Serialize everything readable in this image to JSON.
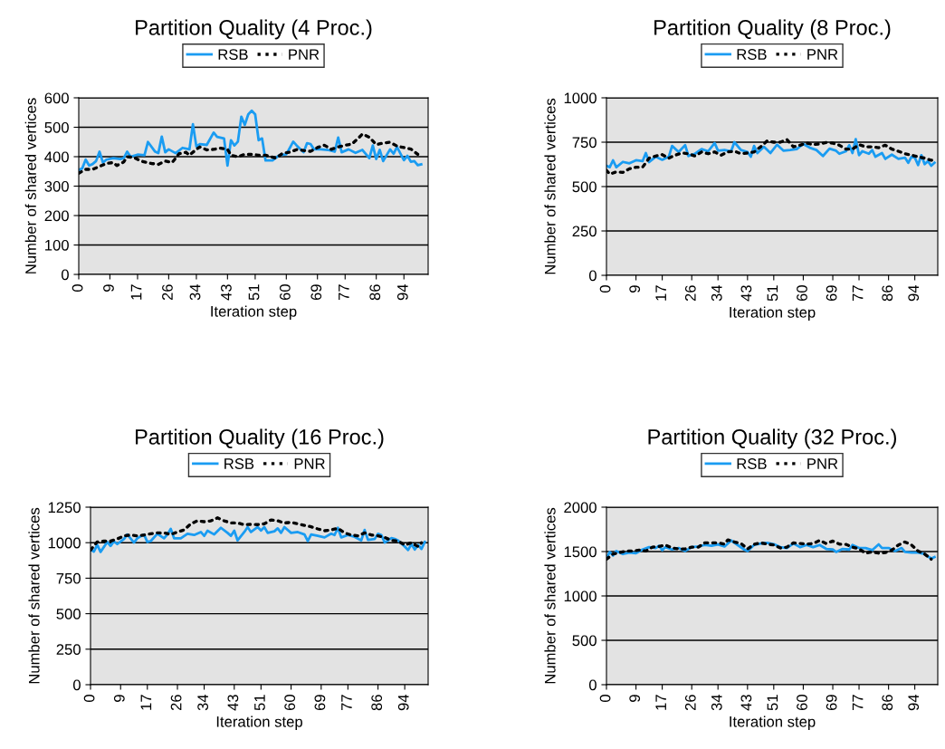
{
  "chart_data": [
    {
      "type": "line",
      "title": "Partition Quality (4 Proc.)",
      "xlabel": "Iteration step",
      "ylabel": "Number of shared vertices",
      "xlim": [
        0,
        101
      ],
      "xticks": [
        0,
        9,
        17,
        26,
        34,
        43,
        51,
        60,
        69,
        77,
        86,
        94
      ],
      "ylim": [
        0,
        600
      ],
      "yticks": [
        0,
        100,
        200,
        300,
        400,
        500,
        600
      ],
      "grid": "y",
      "legend": "top",
      "marker": "none",
      "series": [
        {
          "name": "RSB",
          "color": "#1a9cf2",
          "line_style": "solid",
          "x": [
            0,
            1,
            2,
            3,
            4,
            5,
            6,
            7,
            8,
            10,
            12,
            13,
            14,
            15,
            17,
            19,
            20,
            22,
            23,
            24,
            25,
            26,
            28,
            30,
            32,
            33,
            34,
            35,
            37,
            39,
            40,
            42,
            43,
            44,
            45,
            46,
            47,
            48,
            49,
            50,
            51,
            52,
            53,
            54,
            56,
            58,
            60,
            62,
            63,
            65,
            66,
            67,
            68,
            70,
            72,
            74,
            75,
            76,
            78,
            80,
            82,
            84,
            85,
            86,
            87,
            88,
            90,
            91,
            92,
            94,
            95,
            96,
            97,
            98,
            99
          ],
          "values": [
            355,
            360,
            390,
            370,
            375,
            385,
            417,
            380,
            390,
            395,
            392,
            395,
            417,
            400,
            407,
            405,
            450,
            418,
            412,
            468,
            415,
            425,
            412,
            430,
            425,
            510,
            435,
            443,
            440,
            482,
            467,
            462,
            370,
            456,
            438,
            451,
            536,
            508,
            544,
            556,
            544,
            456,
            462,
            387,
            387,
            405,
            408,
            451,
            438,
            415,
            446,
            443,
            425,
            425,
            423,
            417,
            465,
            415,
            425,
            413,
            423,
            395,
            438,
            392,
            423,
            385,
            425,
            410,
            433,
            388,
            403,
            383,
            385,
            371,
            374
          ]
        },
        {
          "name": "PNR",
          "color": "#000000",
          "line_style": "dotted",
          "x": [
            0,
            2,
            4,
            6,
            8,
            10,
            11,
            13,
            14,
            16,
            18,
            21,
            23,
            25,
            27,
            29,
            31,
            32,
            34,
            35,
            37,
            39,
            41,
            43,
            44,
            46,
            48,
            50,
            52,
            54,
            57,
            59,
            61,
            63,
            65,
            67,
            69,
            71,
            73,
            75,
            77,
            79,
            81,
            82,
            84,
            86,
            88,
            90,
            92,
            94,
            96,
            98
          ],
          "values": [
            344,
            357,
            357,
            367,
            377,
            380,
            370,
            382,
            400,
            397,
            385,
            377,
            374,
            385,
            380,
            410,
            415,
            405,
            425,
            433,
            423,
            425,
            429,
            425,
            405,
            400,
            408,
            408,
            405,
            405,
            395,
            412,
            415,
            424,
            421,
            418,
            431,
            439,
            425,
            433,
            439,
            443,
            465,
            477,
            466,
            441,
            446,
            449,
            436,
            431,
            426,
            408
          ]
        }
      ]
    },
    {
      "type": "line",
      "title": "Partition Quality (8 Proc.)",
      "xlabel": "Iteration step",
      "ylabel": "Number of shared vertices",
      "xlim": [
        0,
        101
      ],
      "xticks": [
        0,
        9,
        17,
        26,
        34,
        43,
        51,
        60,
        69,
        77,
        86,
        94
      ],
      "ylim": [
        0,
        1000
      ],
      "yticks": [
        0,
        250,
        500,
        750,
        1000
      ],
      "grid": "y",
      "legend": "top",
      "marker": "none",
      "series": [
        {
          "name": "RSB",
          "color": "#1a9cf2",
          "line_style": "solid",
          "x": [
            0,
            1,
            2,
            3,
            5,
            7,
            9,
            11,
            12,
            13,
            15,
            17,
            19,
            20,
            22,
            24,
            25,
            27,
            29,
            31,
            33,
            34,
            36,
            38,
            39,
            41,
            43,
            44,
            45,
            46,
            48,
            50,
            52,
            54,
            56,
            58,
            60,
            62,
            64,
            66,
            68,
            70,
            71,
            73,
            74,
            75,
            76,
            77,
            78,
            80,
            81,
            82,
            84,
            85,
            87,
            89,
            91,
            92,
            93,
            94,
            95,
            96,
            97,
            98,
            99,
            100
          ],
          "values": [
            617,
            609,
            648,
            609,
            639,
            631,
            648,
            643,
            689,
            638,
            668,
            651,
            668,
            729,
            695,
            733,
            672,
            685,
            711,
            699,
            745,
            702,
            706,
            699,
            750,
            706,
            695,
            668,
            729,
            689,
            724,
            689,
            736,
            702,
            706,
            711,
            740,
            719,
            706,
            672,
            714,
            702,
            685,
            699,
            733,
            689,
            767,
            677,
            699,
            685,
            706,
            668,
            689,
            656,
            680,
            656,
            663,
            634,
            668,
            663,
            621,
            677,
            626,
            643,
            617,
            634
          ]
        },
        {
          "name": "PNR",
          "color": "#000000",
          "line_style": "dotted",
          "x": [
            0,
            1,
            3,
            5,
            7,
            9,
            11,
            13,
            15,
            17,
            19,
            21,
            23,
            25,
            27,
            29,
            31,
            33,
            35,
            37,
            39,
            41,
            43,
            45,
            47,
            49,
            51,
            53,
            55,
            57,
            59,
            61,
            63,
            65,
            67,
            69,
            71,
            73,
            75,
            77,
            79,
            81,
            83,
            85,
            87,
            89,
            91,
            93,
            95,
            97,
            99,
            100
          ],
          "values": [
            592,
            570,
            583,
            580,
            600,
            609,
            609,
            660,
            672,
            680,
            660,
            677,
            689,
            685,
            672,
            695,
            685,
            695,
            677,
            695,
            699,
            685,
            689,
            695,
            724,
            757,
            750,
            750,
            765,
            724,
            733,
            745,
            736,
            741,
            748,
            745,
            733,
            711,
            711,
            736,
            724,
            724,
            719,
            733,
            711,
            699,
            685,
            677,
            668,
            660,
            648,
            651
          ]
        }
      ]
    },
    {
      "type": "line",
      "title": "Partition Quality (16 Proc.)",
      "xlabel": "Iteration step",
      "ylabel": "Number of shared vertices",
      "xlim": [
        0,
        101
      ],
      "xticks": [
        0,
        9,
        17,
        26,
        34,
        43,
        51,
        60,
        69,
        77,
        86,
        94
      ],
      "ylim": [
        0,
        1250
      ],
      "yticks": [
        0,
        250,
        500,
        750,
        1000,
        1250
      ],
      "grid": "y",
      "legend": "top",
      "marker": "none",
      "series": [
        {
          "name": "RSB",
          "color": "#1a9cf2",
          "line_style": "solid",
          "x": [
            0,
            1,
            2,
            3,
            5,
            6,
            7,
            8,
            10,
            11,
            13,
            14,
            16,
            17,
            18,
            20,
            22,
            23,
            24,
            25,
            27,
            29,
            31,
            33,
            34,
            35,
            37,
            39,
            41,
            42,
            43,
            44,
            46,
            47,
            48,
            50,
            51,
            52,
            53,
            55,
            56,
            57,
            58,
            60,
            62,
            64,
            65,
            66,
            68,
            70,
            72,
            73,
            74,
            75,
            77,
            79,
            81,
            82,
            83,
            85,
            86,
            87,
            88,
            90,
            91,
            92,
            94,
            95,
            96,
            97,
            98,
            99,
            100
          ],
          "values": [
            952,
            937,
            984,
            935,
            1005,
            977,
            1009,
            990,
            1026,
            1058,
            1001,
            1031,
            1058,
            1005,
            1011,
            1063,
            1031,
            1058,
            1097,
            1031,
            1031,
            1063,
            1054,
            1075,
            1048,
            1084,
            1058,
            1105,
            1069,
            1048,
            1084,
            1016,
            1075,
            1110,
            1075,
            1110,
            1086,
            1110,
            1069,
            1080,
            1101,
            1069,
            1110,
            1069,
            1075,
            1058,
            1011,
            1058,
            1048,
            1037,
            1063,
            1054,
            1105,
            1037,
            1054,
            1041,
            1016,
            1090,
            1020,
            1026,
            1063,
            1054,
            1001,
            1033,
            1026,
            1016,
            973,
            948,
            990,
            952,
            984,
            956,
            1005
          ]
        },
        {
          "name": "PNR",
          "color": "#000000",
          "line_style": "dotted",
          "x": [
            0,
            2,
            4,
            6,
            8,
            10,
            12,
            14,
            16,
            18,
            20,
            22,
            24,
            26,
            28,
            30,
            32,
            34,
            36,
            38,
            40,
            42,
            44,
            46,
            48,
            50,
            52,
            54,
            56,
            58,
            60,
            62,
            64,
            66,
            68,
            70,
            72,
            74,
            76,
            78,
            80,
            82,
            84,
            86,
            88,
            90,
            92,
            94,
            96,
            98,
            99
          ],
          "values": [
            948,
            1005,
            1011,
            1011,
            1026,
            1048,
            1054,
            1048,
            1054,
            1063,
            1069,
            1069,
            1058,
            1075,
            1090,
            1133,
            1154,
            1148,
            1154,
            1175,
            1154,
            1139,
            1139,
            1127,
            1129,
            1127,
            1133,
            1160,
            1154,
            1139,
            1143,
            1133,
            1122,
            1112,
            1097,
            1084,
            1090,
            1101,
            1069,
            1054,
            1048,
            1069,
            1054,
            1048,
            1037,
            1016,
            1011,
            984,
            999,
            973,
            999
          ]
        }
      ]
    },
    {
      "type": "line",
      "title": "Partition Quality (32 Proc.)",
      "xlabel": "Iteration step",
      "ylabel": "Number of shared vertices",
      "xlim": [
        0,
        101
      ],
      "xticks": [
        0,
        9,
        17,
        26,
        34,
        43,
        51,
        60,
        69,
        77,
        86,
        94
      ],
      "ylim": [
        0,
        2000
      ],
      "yticks": [
        0,
        500,
        1000,
        1500,
        2000
      ],
      "grid": "y",
      "legend": "top",
      "marker": "none",
      "series": [
        {
          "name": "RSB",
          "color": "#1a9cf2",
          "line_style": "solid",
          "x": [
            0,
            1,
            2,
            3,
            5,
            7,
            9,
            11,
            13,
            15,
            16,
            17,
            18,
            20,
            22,
            24,
            26,
            28,
            30,
            32,
            34,
            36,
            38,
            40,
            42,
            43,
            45,
            47,
            49,
            51,
            53,
            55,
            57,
            59,
            61,
            63,
            65,
            67,
            69,
            70,
            72,
            74,
            75,
            77,
            79,
            81,
            83,
            84,
            86,
            88,
            90,
            91,
            93,
            95,
            97,
            99,
            100
          ],
          "values": [
            1421,
            1496,
            1455,
            1506,
            1472,
            1489,
            1482,
            1523,
            1550,
            1540,
            1564,
            1516,
            1550,
            1523,
            1540,
            1506,
            1550,
            1557,
            1574,
            1564,
            1581,
            1557,
            1625,
            1574,
            1523,
            1506,
            1574,
            1591,
            1598,
            1584,
            1550,
            1540,
            1591,
            1550,
            1574,
            1550,
            1574,
            1530,
            1523,
            1496,
            1530,
            1523,
            1574,
            1540,
            1540,
            1516,
            1581,
            1540,
            1540,
            1506,
            1540,
            1496,
            1489,
            1489,
            1472,
            1421,
            1438
          ]
        },
        {
          "name": "PNR",
          "color": "#000000",
          "line_style": "dotted",
          "x": [
            0,
            2,
            4,
            6,
            8,
            10,
            12,
            14,
            16,
            18,
            20,
            22,
            24,
            26,
            28,
            30,
            32,
            34,
            36,
            37,
            39,
            41,
            43,
            45,
            47,
            49,
            51,
            53,
            55,
            57,
            59,
            61,
            63,
            65,
            67,
            69,
            71,
            73,
            75,
            77,
            79,
            81,
            83,
            85,
            87,
            89,
            91,
            93,
            95,
            97,
            99
          ],
          "values": [
            1414,
            1472,
            1489,
            1506,
            1506,
            1516,
            1506,
            1550,
            1557,
            1574,
            1540,
            1530,
            1530,
            1550,
            1550,
            1598,
            1598,
            1598,
            1584,
            1632,
            1608,
            1591,
            1530,
            1581,
            1598,
            1584,
            1574,
            1540,
            1550,
            1598,
            1591,
            1584,
            1591,
            1625,
            1591,
            1618,
            1584,
            1581,
            1550,
            1530,
            1482,
            1496,
            1482,
            1489,
            1516,
            1574,
            1608,
            1574,
            1506,
            1472,
            1414
          ]
        }
      ]
    }
  ]
}
